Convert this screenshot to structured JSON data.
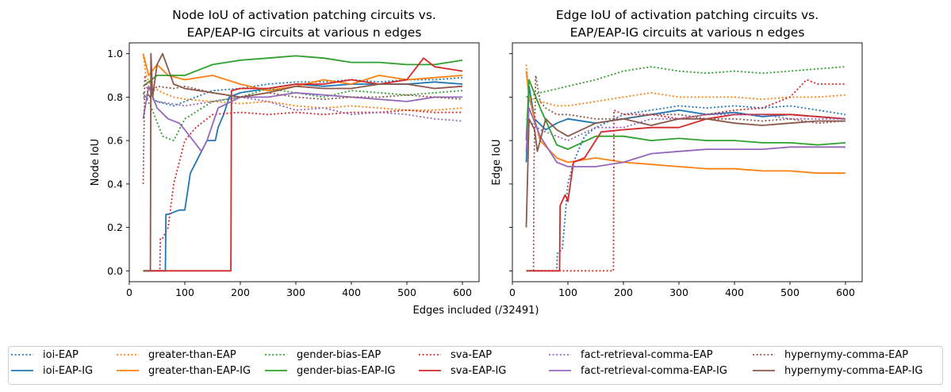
{
  "figure": {
    "xlabel": "Edges included (/32491)"
  },
  "chart_data": [
    {
      "type": "line",
      "title_line1": "Node IoU of activation patching circuits vs.",
      "title_line2": "EAP/EAP-IG circuits at various n edges",
      "xlabel": "Edges included (/32491)",
      "ylabel": "Node IoU",
      "xlim": [
        0,
        630
      ],
      "ylim": [
        -0.05,
        1.05
      ],
      "xticks": [
        "0",
        "100",
        "200",
        "300",
        "400",
        "500",
        "600"
      ],
      "yticks": [
        "0.0",
        "0.2",
        "0.4",
        "0.6",
        "0.8",
        "1.0"
      ],
      "xtick_values": [
        0,
        100,
        200,
        300,
        400,
        500,
        600
      ],
      "ytick_values": [
        0,
        0.2,
        0.4,
        0.6,
        0.8,
        1.0
      ],
      "series": [
        {
          "name": "ioi-EAP",
          "color": "#1f77b4",
          "dash": "dotted",
          "x": [
            25,
            50,
            80,
            100,
            150,
            200,
            250,
            300,
            350,
            400,
            450,
            500,
            550,
            600
          ],
          "y": [
            0.82,
            0.78,
            0.76,
            0.78,
            0.83,
            0.84,
            0.86,
            0.87,
            0.87,
            0.88,
            0.87,
            0.88,
            0.88,
            0.89
          ]
        },
        {
          "name": "ioi-EAP-IG",
          "color": "#1f77b4",
          "dash": "solid",
          "x": [
            25,
            50,
            65,
            66,
            70,
            80,
            90,
            100,
            110,
            130,
            140,
            155,
            160,
            170,
            180,
            200,
            250,
            300,
            350,
            400,
            450,
            500,
            550,
            600
          ],
          "y": [
            0,
            0,
            0,
            0.26,
            0.26,
            0.27,
            0.28,
            0.28,
            0.45,
            0.55,
            0.6,
            0.6,
            0.66,
            0.72,
            0.8,
            0.82,
            0.84,
            0.86,
            0.85,
            0.86,
            0.86,
            0.86,
            0.87,
            0.86
          ]
        },
        {
          "name": "greater-than-EAP",
          "color": "#ff7f0e",
          "dash": "dotted",
          "x": [
            25,
            30,
            40,
            60,
            80,
            100,
            150,
            200,
            250,
            300,
            350,
            400,
            450,
            500,
            550,
            600
          ],
          "y": [
            1.0,
            0.9,
            0.85,
            0.82,
            0.8,
            0.79,
            0.78,
            0.77,
            0.78,
            0.76,
            0.75,
            0.76,
            0.75,
            0.74,
            0.74,
            0.75
          ]
        },
        {
          "name": "greater-than-EAP-IG",
          "color": "#ff7f0e",
          "dash": "solid",
          "x": [
            25,
            35,
            50,
            70,
            100,
            150,
            200,
            250,
            300,
            350,
            400,
            450,
            500,
            550,
            600
          ],
          "y": [
            1.0,
            0.9,
            0.95,
            0.9,
            0.88,
            0.9,
            0.86,
            0.83,
            0.85,
            0.88,
            0.86,
            0.9,
            0.88,
            0.89,
            0.9
          ]
        },
        {
          "name": "gender-bias-EAP",
          "color": "#2ca02c",
          "dash": "dotted",
          "x": [
            25,
            40,
            60,
            80,
            100,
            150,
            200,
            250,
            300,
            350,
            400,
            450,
            500,
            550,
            600
          ],
          "y": [
            0.82,
            0.75,
            0.62,
            0.6,
            0.7,
            0.78,
            0.8,
            0.84,
            0.82,
            0.8,
            0.83,
            0.82,
            0.81,
            0.82,
            0.83
          ]
        },
        {
          "name": "gender-bias-EAP-IG",
          "color": "#2ca02c",
          "dash": "solid",
          "x": [
            25,
            50,
            100,
            150,
            200,
            250,
            300,
            350,
            400,
            450,
            500,
            550,
            600
          ],
          "y": [
            0.85,
            0.9,
            0.9,
            0.95,
            0.97,
            0.98,
            0.99,
            0.98,
            0.96,
            0.96,
            0.95,
            0.95,
            0.97
          ]
        },
        {
          "name": "sva-EAP",
          "color": "#d62728",
          "dash": "dotted",
          "x": [
            25,
            55,
            56,
            60,
            70,
            80,
            90,
            95,
            100,
            120,
            150,
            200,
            250,
            300,
            350,
            400,
            450,
            500,
            550,
            600
          ],
          "y": [
            0,
            0,
            0.15,
            0.15,
            0.2,
            0.4,
            0.5,
            0.55,
            0.6,
            0.66,
            0.72,
            0.73,
            0.72,
            0.73,
            0.72,
            0.73,
            0.73,
            0.74,
            0.73,
            0.73
          ]
        },
        {
          "name": "sva-EAP-IG",
          "color": "#d62728",
          "dash": "solid",
          "x": [
            25,
            183,
            184,
            200,
            250,
            300,
            350,
            400,
            450,
            500,
            530,
            550,
            600
          ],
          "y": [
            0,
            0,
            0.83,
            0.84,
            0.84,
            0.86,
            0.86,
            0.88,
            0.86,
            0.88,
            0.98,
            0.94,
            0.92
          ]
        },
        {
          "name": "fact-retrieval-comma-EAP",
          "color": "#9467bd",
          "dash": "dotted",
          "x": [
            25,
            50,
            100,
            150,
            200,
            250,
            300,
            350,
            400,
            450,
            500,
            550,
            600
          ],
          "y": [
            0.8,
            0.78,
            0.76,
            0.78,
            0.8,
            0.78,
            0.74,
            0.75,
            0.72,
            0.73,
            0.72,
            0.7,
            0.69
          ]
        },
        {
          "name": "fact-retrieval-comma-EAP-IG",
          "color": "#9467bd",
          "dash": "solid",
          "x": [
            25,
            35,
            50,
            70,
            90,
            100,
            130,
            140,
            160,
            200,
            250,
            300,
            350,
            400,
            450,
            500,
            550,
            600
          ],
          "y": [
            0.7,
            0.85,
            0.75,
            0.7,
            0.68,
            0.65,
            0.55,
            0.6,
            0.75,
            0.8,
            0.8,
            0.82,
            0.81,
            0.8,
            0.79,
            0.78,
            0.8,
            0.8
          ]
        },
        {
          "name": "hypernymy-comma-EAP",
          "color": "#8c564b",
          "dash": "dotted",
          "x": [
            25,
            28,
            35,
            50,
            80,
            100,
            150,
            200,
            250,
            300,
            350,
            400,
            450,
            500,
            550,
            600
          ],
          "y": [
            0.4,
            0.9,
            0.8,
            0.85,
            0.84,
            0.85,
            0.82,
            0.8,
            0.82,
            0.8,
            0.79,
            0.8,
            0.8,
            0.81,
            0.8,
            0.79
          ]
        },
        {
          "name": "hypernymy-comma-EAP-IG",
          "color": "#8c564b",
          "dash": "solid",
          "x": [
            25,
            38,
            39,
            42,
            50,
            60,
            80,
            100,
            150,
            200,
            250,
            300,
            350,
            400,
            450,
            500,
            550,
            600
          ],
          "y": [
            0,
            0,
            1.0,
            0.8,
            0.95,
            1.0,
            0.86,
            0.84,
            0.82,
            0.8,
            0.82,
            0.85,
            0.84,
            0.84,
            0.86,
            0.86,
            0.84,
            0.85
          ]
        }
      ]
    },
    {
      "type": "line",
      "title_line1": "Edge IoU of activation patching circuits vs.",
      "title_line2": "EAP/EAP-IG circuits at various n edges",
      "xlabel": "",
      "ylabel": "Edge IoU",
      "xlim": [
        0,
        630
      ],
      "ylim": [
        -0.05,
        1.05
      ],
      "xticks": [
        "100",
        "200",
        "300",
        "400",
        "500",
        "600"
      ],
      "xtick_values": [
        100,
        200,
        300,
        400,
        500,
        600
      ],
      "ytick_values": [
        0,
        0.2,
        0.4,
        0.6,
        0.8,
        1.0
      ],
      "series": [
        {
          "name": "ioi-EAP",
          "color": "#1f77b4",
          "dash": "dotted",
          "x": [
            25,
            80,
            81,
            90,
            100,
            110,
            130,
            150,
            200,
            250,
            300,
            350,
            400,
            450,
            500,
            550,
            600
          ],
          "y": [
            0,
            0,
            0.08,
            0.1,
            0.4,
            0.5,
            0.62,
            0.66,
            0.72,
            0.74,
            0.76,
            0.75,
            0.76,
            0.75,
            0.76,
            0.74,
            0.72
          ]
        },
        {
          "name": "ioi-EAP-IG",
          "color": "#1f77b4",
          "dash": "solid",
          "x": [
            25,
            30,
            40,
            60,
            80,
            100,
            150,
            200,
            250,
            300,
            350,
            400,
            450,
            500,
            550,
            600
          ],
          "y": [
            0.5,
            0.85,
            0.7,
            0.65,
            0.68,
            0.7,
            0.68,
            0.7,
            0.72,
            0.74,
            0.72,
            0.73,
            0.71,
            0.72,
            0.71,
            0.7
          ]
        },
        {
          "name": "greater-than-EAP",
          "color": "#ff7f0e",
          "dash": "dotted",
          "x": [
            25,
            30,
            50,
            80,
            100,
            150,
            200,
            250,
            300,
            350,
            400,
            450,
            500,
            550,
            600
          ],
          "y": [
            0.95,
            0.8,
            0.78,
            0.76,
            0.76,
            0.78,
            0.8,
            0.82,
            0.8,
            0.8,
            0.8,
            0.79,
            0.8,
            0.8,
            0.81
          ]
        },
        {
          "name": "greater-than-EAP-IG",
          "color": "#ff7f0e",
          "dash": "solid",
          "x": [
            25,
            30,
            50,
            80,
            100,
            150,
            200,
            250,
            300,
            350,
            400,
            450,
            500,
            550,
            600
          ],
          "y": [
            0.92,
            0.8,
            0.6,
            0.52,
            0.5,
            0.52,
            0.5,
            0.49,
            0.48,
            0.47,
            0.47,
            0.46,
            0.46,
            0.45,
            0.45
          ]
        },
        {
          "name": "gender-bias-EAP",
          "color": "#2ca02c",
          "dash": "dotted",
          "x": [
            25,
            50,
            100,
            150,
            200,
            250,
            300,
            350,
            400,
            450,
            500,
            550,
            600
          ],
          "y": [
            0.8,
            0.82,
            0.85,
            0.88,
            0.92,
            0.94,
            0.92,
            0.91,
            0.92,
            0.91,
            0.92,
            0.93,
            0.94
          ]
        },
        {
          "name": "gender-bias-EAP-IG",
          "color": "#2ca02c",
          "dash": "solid",
          "x": [
            25,
            30,
            50,
            80,
            100,
            150,
            200,
            250,
            300,
            350,
            400,
            450,
            500,
            550,
            600
          ],
          "y": [
            0.6,
            0.88,
            0.75,
            0.58,
            0.56,
            0.62,
            0.62,
            0.6,
            0.61,
            0.6,
            0.6,
            0.59,
            0.59,
            0.58,
            0.59
          ]
        },
        {
          "name": "sva-EAP",
          "color": "#d62728",
          "dash": "dotted",
          "x": [
            25,
            182,
            183,
            200,
            250,
            300,
            350,
            400,
            450,
            500,
            530,
            550,
            600
          ],
          "y": [
            0,
            0,
            0.74,
            0.72,
            0.72,
            0.7,
            0.72,
            0.74,
            0.75,
            0.8,
            0.88,
            0.86,
            0.86
          ]
        },
        {
          "name": "sva-EAP-IG",
          "color": "#d62728",
          "dash": "solid",
          "x": [
            25,
            85,
            86,
            95,
            100,
            110,
            130,
            150,
            160,
            200,
            250,
            300,
            350,
            400,
            450,
            500,
            550,
            600
          ],
          "y": [
            0,
            0,
            0.3,
            0.35,
            0.32,
            0.5,
            0.52,
            0.6,
            0.64,
            0.65,
            0.66,
            0.66,
            0.7,
            0.72,
            0.72,
            0.72,
            0.71,
            0.7
          ]
        },
        {
          "name": "fact-retrieval-comma-EAP",
          "color": "#9467bd",
          "dash": "dotted",
          "x": [
            25,
            50,
            100,
            150,
            200,
            250,
            300,
            350,
            400,
            450,
            500,
            550,
            600
          ],
          "y": [
            0.7,
            0.65,
            0.6,
            0.66,
            0.66,
            0.7,
            0.7,
            0.72,
            0.72,
            0.72,
            0.7,
            0.7,
            0.7
          ]
        },
        {
          "name": "fact-retrieval-comma-EAP-IG",
          "color": "#9467bd",
          "dash": "solid",
          "x": [
            25,
            30,
            50,
            80,
            100,
            150,
            200,
            250,
            300,
            350,
            400,
            450,
            500,
            550,
            600
          ],
          "y": [
            0.55,
            0.75,
            0.62,
            0.5,
            0.48,
            0.48,
            0.5,
            0.54,
            0.55,
            0.56,
            0.56,
            0.56,
            0.57,
            0.57,
            0.57
          ]
        },
        {
          "name": "hypernymy-comma-EAP",
          "color": "#8c564b",
          "dash": "dotted",
          "x": [
            25,
            38,
            39,
            42,
            50,
            60,
            80,
            100,
            150,
            200,
            250,
            300,
            350,
            400,
            450,
            500,
            550,
            600
          ],
          "y": [
            0,
            0,
            0.5,
            0.9,
            0.78,
            0.75,
            0.72,
            0.72,
            0.7,
            0.7,
            0.72,
            0.72,
            0.7,
            0.7,
            0.69,
            0.7,
            0.68,
            0.69
          ]
        },
        {
          "name": "hypernymy-comma-EAP-IG",
          "color": "#8c564b",
          "dash": "solid",
          "x": [
            25,
            30,
            40,
            45,
            60,
            80,
            100,
            150,
            200,
            250,
            300,
            350,
            400,
            450,
            500,
            550,
            600
          ],
          "y": [
            0.2,
            0.7,
            0.65,
            0.55,
            0.7,
            0.65,
            0.62,
            0.68,
            0.7,
            0.67,
            0.7,
            0.7,
            0.68,
            0.67,
            0.68,
            0.69,
            0.69
          ]
        }
      ]
    }
  ],
  "legend": {
    "columns": 6,
    "items": [
      "ioi-EAP",
      "ioi-EAP-IG",
      "greater-than-EAP",
      "greater-than-EAP-IG",
      "gender-bias-EAP",
      "gender-bias-EAP-IG",
      "sva-EAP",
      "sva-EAP-IG",
      "fact-retrieval-comma-EAP",
      "fact-retrieval-comma-EAP-IG",
      "hypernymy-comma-EAP",
      "hypernymy-comma-EAP-IG"
    ]
  }
}
